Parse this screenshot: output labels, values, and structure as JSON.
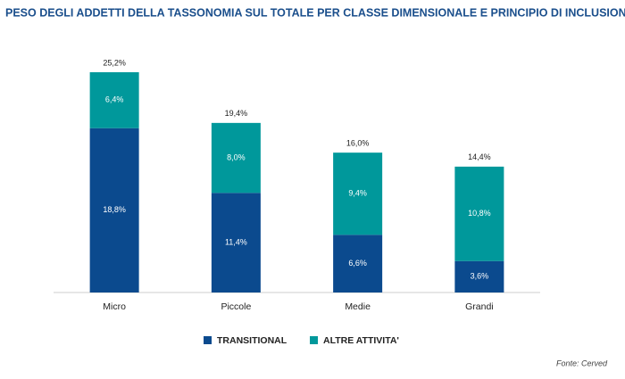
{
  "chart_data": {
    "type": "stacked_bar",
    "title": "PESO DEGLI ADDETTI DELLA TASSONOMIA SUL TOTALE PER CLASSE DIMENSIONALE E PRINCIPIO DI INCLUSIONE",
    "categories": [
      "Micro",
      "Piccole",
      "Medie",
      "Grandi"
    ],
    "series": [
      {
        "name": "TRANSITIONAL",
        "color": "#0b4a8e",
        "values": [
          18.8,
          11.4,
          6.6,
          3.6
        ],
        "value_labels": [
          "18,8%",
          "11,4%",
          "6,6%",
          "3,6%"
        ]
      },
      {
        "name": "ALTRE ATTIVITA'",
        "color": "#00989b",
        "values": [
          6.4,
          8.0,
          9.4,
          10.8
        ],
        "value_labels": [
          "6,4%",
          "8,0%",
          "9,4%",
          "10,8%"
        ]
      }
    ],
    "totals": [
      25.2,
      19.4,
      16.0,
      14.4
    ],
    "total_labels": [
      "25,2%",
      "19,4%",
      "16,0%",
      "14,4%"
    ],
    "source": "Fonte: Cerved"
  }
}
